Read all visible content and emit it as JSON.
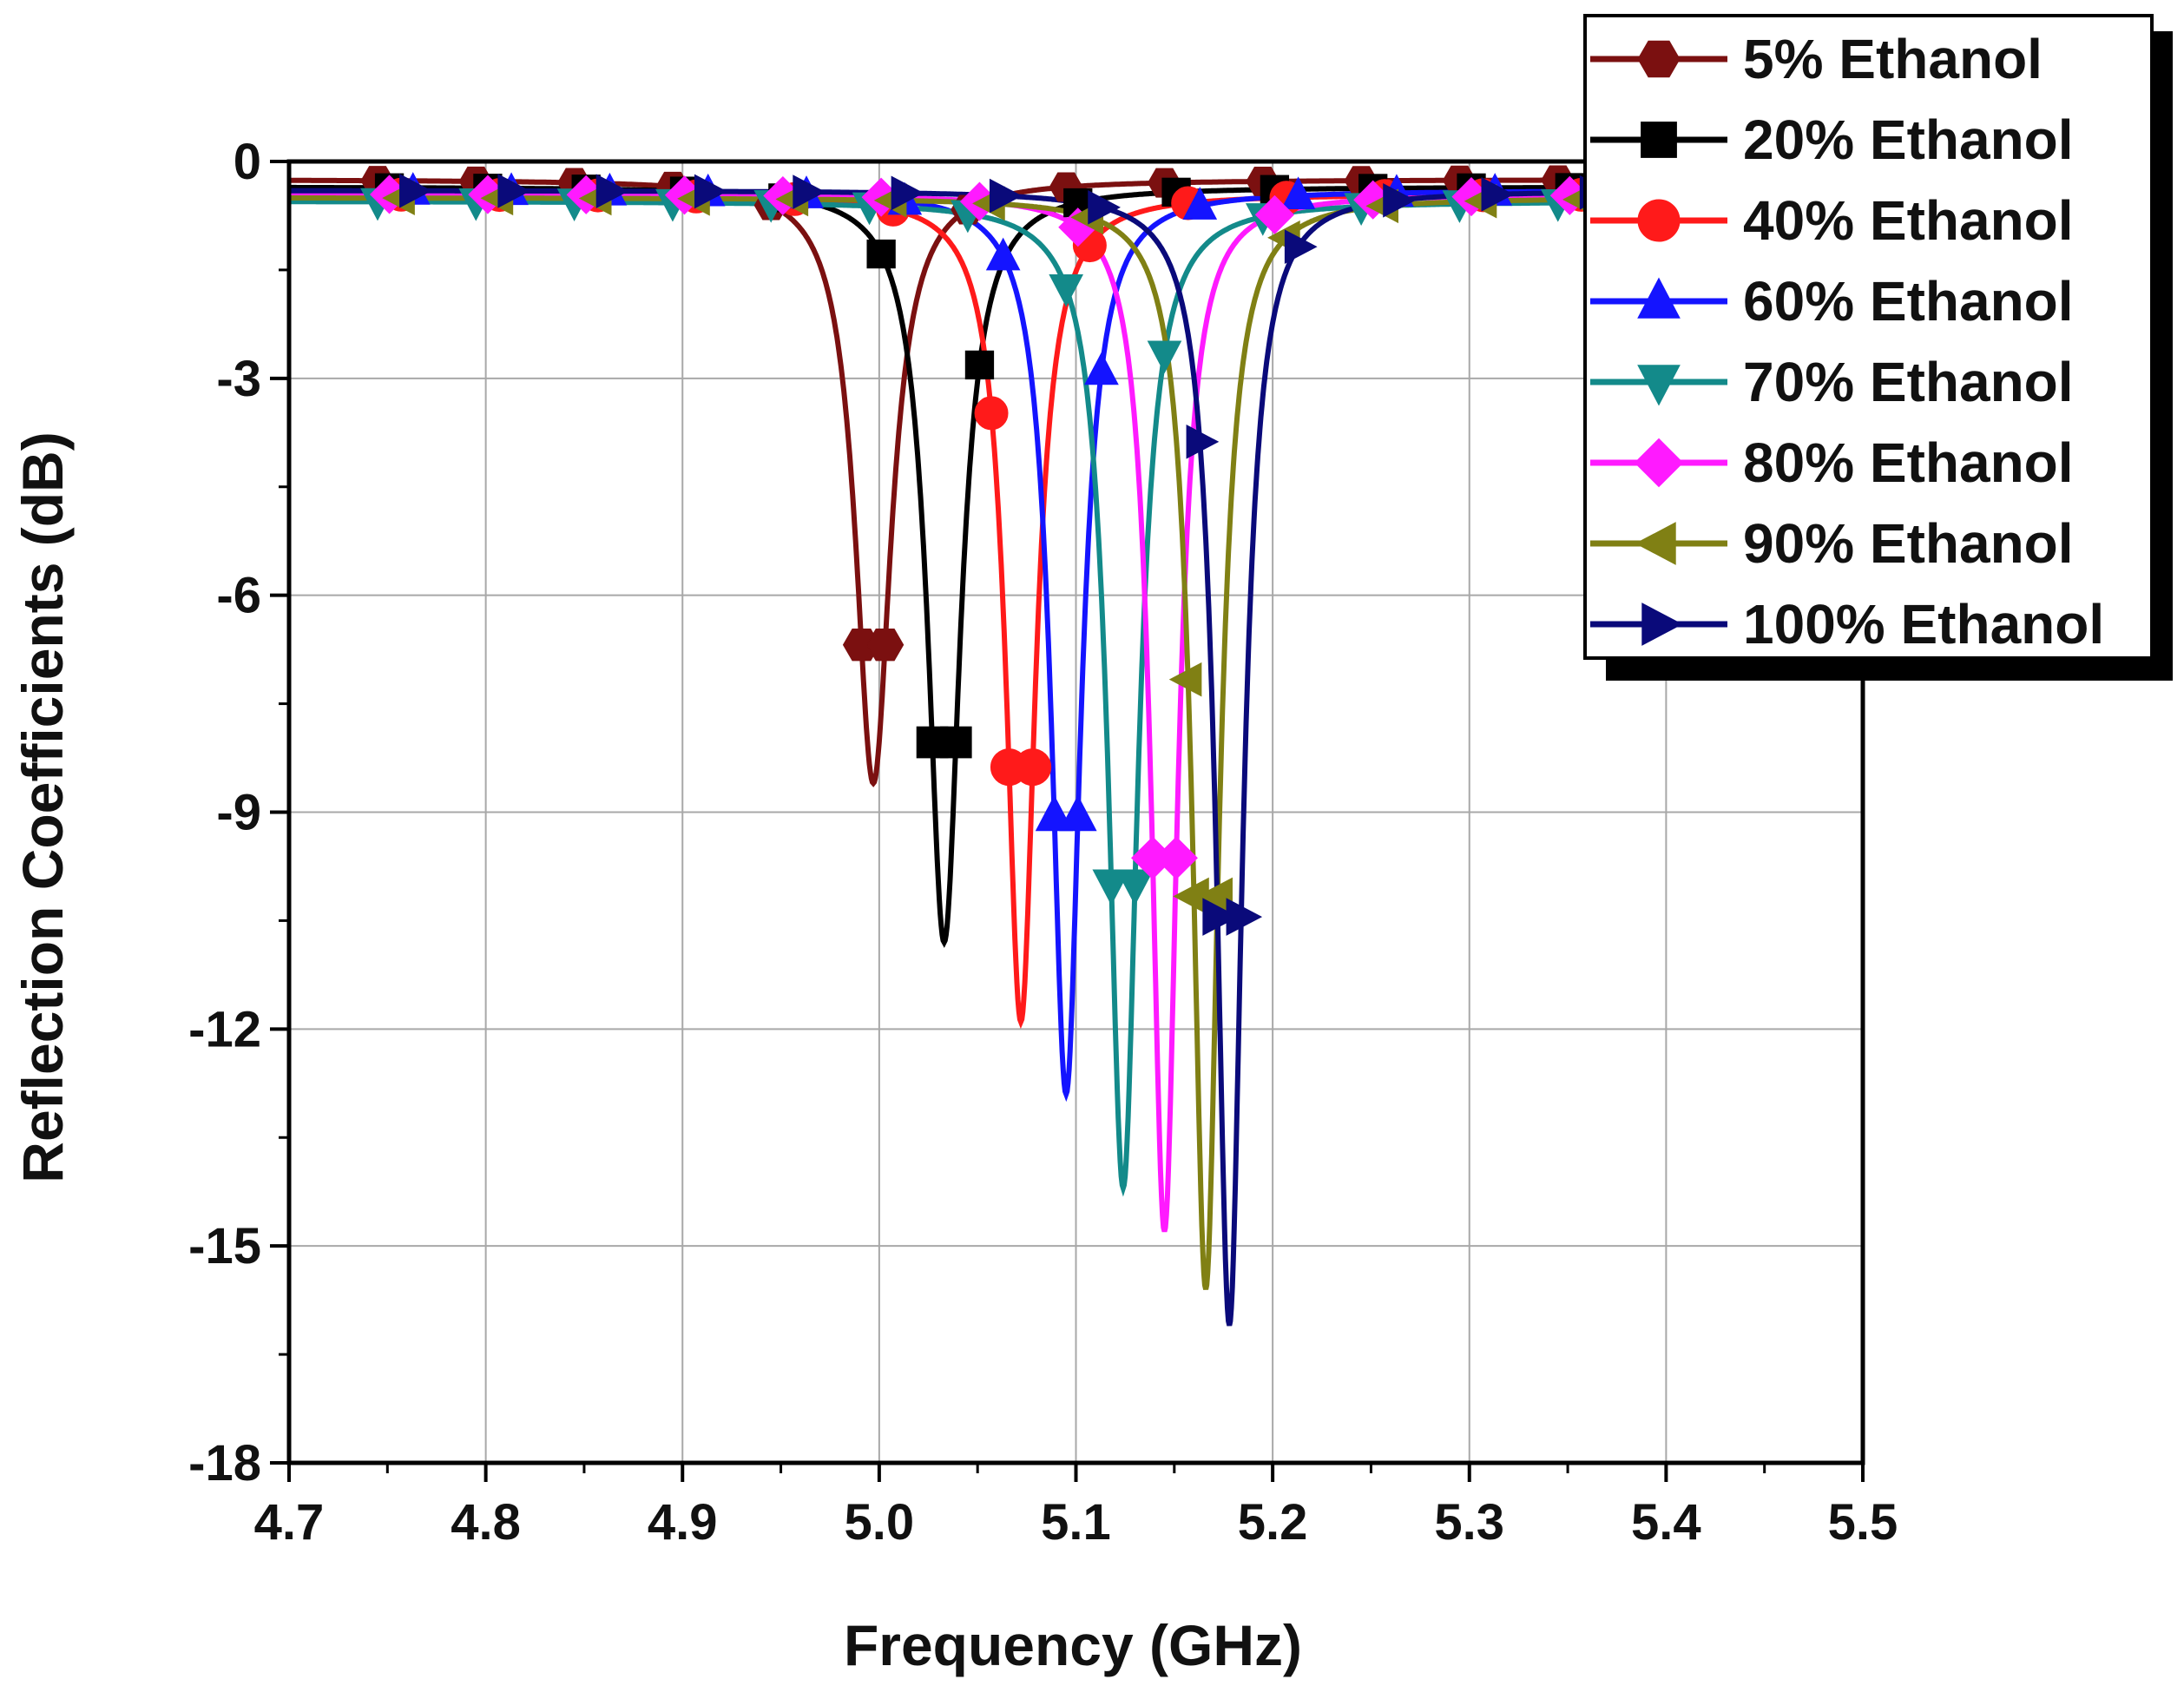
{
  "chart_data": {
    "type": "line",
    "title": "",
    "xlabel": "Frequency (GHz)",
    "ylabel": "Reflection Coefficients (dB)",
    "xlim": [
      4.7,
      5.5
    ],
    "ylim": [
      -18,
      0
    ],
    "x_ticks": [
      "4.7",
      "4.8",
      "4.9",
      "5.0",
      "5.1",
      "5.2",
      "5.3",
      "5.4",
      "5.5"
    ],
    "y_ticks": [
      "0",
      "-3",
      "-6",
      "-9",
      "-12",
      "-15",
      "-18"
    ],
    "grid": true,
    "legend_position": "top-right",
    "series": [
      {
        "name": "5% Ethanol",
        "color": "#7b1010",
        "marker": "hexagon",
        "f0": 4.997,
        "min_db": -8.6,
        "baseline": -0.25,
        "width": 0.011
      },
      {
        "name": "20% Ethanol",
        "color": "#000000",
        "marker": "square",
        "f0": 5.033,
        "min_db": -10.8,
        "baseline": -0.35,
        "width": 0.01
      },
      {
        "name": "40% Ethanol",
        "color": "#ff1a1a",
        "marker": "circle",
        "f0": 5.072,
        "min_db": -11.9,
        "baseline": -0.45,
        "width": 0.009
      },
      {
        "name": "60% Ethanol",
        "color": "#1414ff",
        "marker": "triangle-up",
        "f0": 5.095,
        "min_db": -12.9,
        "baseline": -0.4,
        "width": 0.009
      },
      {
        "name": "70% Ethanol",
        "color": "#138a8a",
        "marker": "triangle-down",
        "f0": 5.124,
        "min_db": -14.2,
        "baseline": -0.55,
        "width": 0.009
      },
      {
        "name": "80% Ethanol",
        "color": "#ff1aff",
        "marker": "diamond",
        "f0": 5.145,
        "min_db": -14.8,
        "baseline": -0.45,
        "width": 0.008
      },
      {
        "name": "90% Ethanol",
        "color": "#808014",
        "marker": "triangle-left",
        "f0": 5.166,
        "min_db": -15.6,
        "baseline": -0.5,
        "width": 0.008
      },
      {
        "name": "100% Ethanol",
        "color": "#0a0a7a",
        "marker": "triangle-right",
        "f0": 5.178,
        "min_db": -16.1,
        "baseline": -0.4,
        "width": 0.008
      }
    ]
  }
}
